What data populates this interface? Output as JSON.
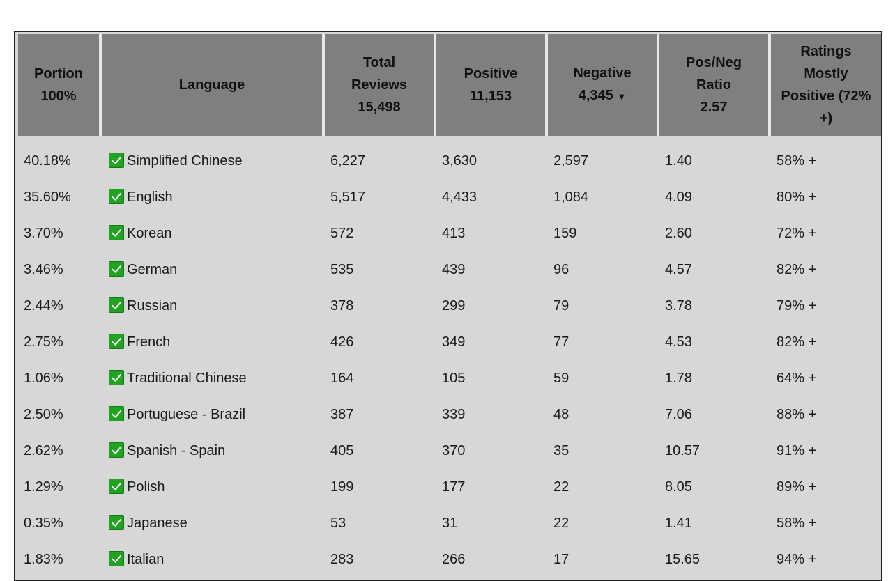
{
  "headers": {
    "portion": {
      "line1": "Portion",
      "line2": "100%"
    },
    "language": {
      "line1": "Language"
    },
    "total": {
      "line1": "Total",
      "line2": "Reviews",
      "line3": "15,498"
    },
    "positive": {
      "line1": "Positive",
      "line2": "11,153"
    },
    "negative": {
      "line1": "Negative",
      "line2": "4,345",
      "sort_indicator": "▼"
    },
    "ratio": {
      "line1": "Pos/Neg",
      "line2": "Ratio",
      "line3": "2.57"
    },
    "ratings": {
      "line1": "Ratings",
      "line2": "Mostly",
      "line3": "Positive (72%",
      "line4": "+)"
    }
  },
  "rows": [
    {
      "portion": "40.18%",
      "language": "Simplified Chinese",
      "total": "6,227",
      "positive": "3,630",
      "negative": "2,597",
      "ratio": "1.40",
      "rating": "58% +"
    },
    {
      "portion": "35.60%",
      "language": "English",
      "total": "5,517",
      "positive": "4,433",
      "negative": "1,084",
      "ratio": "4.09",
      "rating": "80% +"
    },
    {
      "portion": "3.70%",
      "language": "Korean",
      "total": "572",
      "positive": "413",
      "negative": "159",
      "ratio": "2.60",
      "rating": "72% +"
    },
    {
      "portion": "3.46%",
      "language": "German",
      "total": "535",
      "positive": "439",
      "negative": "96",
      "ratio": "4.57",
      "rating": "82% +"
    },
    {
      "portion": "2.44%",
      "language": "Russian",
      "total": "378",
      "positive": "299",
      "negative": "79",
      "ratio": "3.78",
      "rating": "79% +"
    },
    {
      "portion": "2.75%",
      "language": "French",
      "total": "426",
      "positive": "349",
      "negative": "77",
      "ratio": "4.53",
      "rating": "82% +"
    },
    {
      "portion": "1.06%",
      "language": "Traditional Chinese",
      "total": "164",
      "positive": "105",
      "negative": "59",
      "ratio": "1.78",
      "rating": "64% +"
    },
    {
      "portion": "2.50%",
      "language": "Portuguese - Brazil",
      "total": "387",
      "positive": "339",
      "negative": "48",
      "ratio": "7.06",
      "rating": "88% +"
    },
    {
      "portion": "2.62%",
      "language": "Spanish - Spain",
      "total": "405",
      "positive": "370",
      "negative": "35",
      "ratio": "10.57",
      "rating": "91% +"
    },
    {
      "portion": "1.29%",
      "language": "Polish",
      "total": "199",
      "positive": "177",
      "negative": "22",
      "ratio": "8.05",
      "rating": "89% +"
    },
    {
      "portion": "0.35%",
      "language": "Japanese",
      "total": "53",
      "positive": "31",
      "negative": "22",
      "ratio": "1.41",
      "rating": "58% +"
    },
    {
      "portion": "1.83%",
      "language": "Italian",
      "total": "283",
      "positive": "266",
      "negative": "17",
      "ratio": "15.65",
      "rating": "94% +"
    }
  ],
  "checkbox_icon": "check-icon",
  "colors": {
    "header_bg": "#7f7f7f",
    "body_bg": "#d7d7d7",
    "check_green": "#21a321"
  }
}
